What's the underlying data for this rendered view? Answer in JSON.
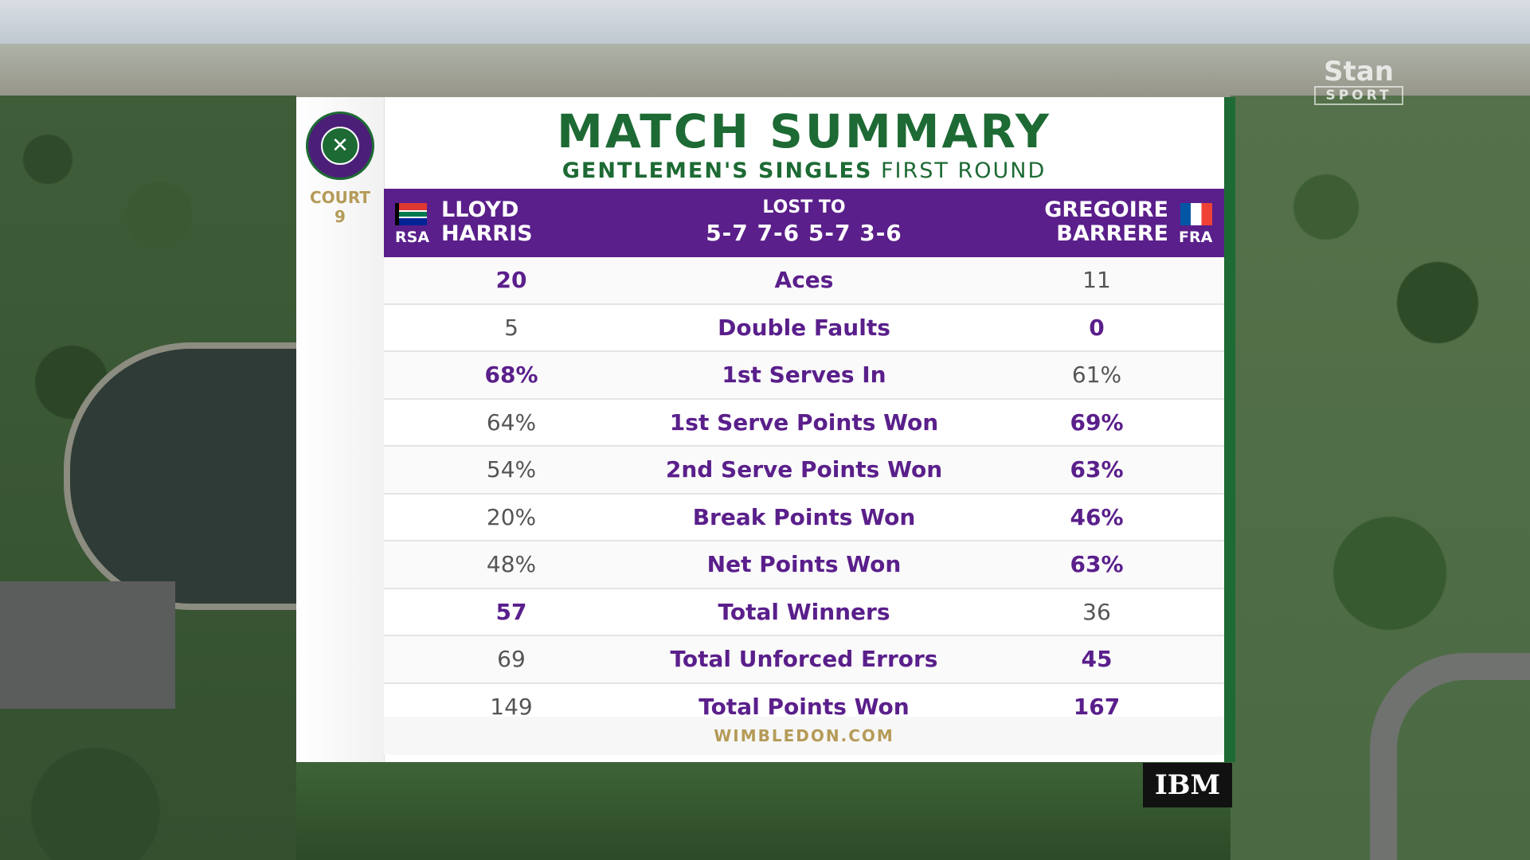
{
  "broadcaster": {
    "name": "Stan",
    "sub": "SPORT"
  },
  "panel": {
    "title": "MATCH SUMMARY",
    "subtitle_strong": "GENTLEMEN'S SINGLES",
    "subtitle_rest": "FIRST ROUND",
    "court_label": "COURT",
    "court_number": "9",
    "website": "WIMBLEDON.COM"
  },
  "header": {
    "left": {
      "first": "LLOYD",
      "last": "HARRIS",
      "code": "RSA"
    },
    "right": {
      "first": "GREGOIRE",
      "last": "BARRERE",
      "code": "FRA"
    },
    "result": "LOST TO",
    "score": "5-7 7-6 5-7 3-6"
  },
  "stats": [
    {
      "label": "Aces",
      "left": "20",
      "right": "11",
      "leader": "left"
    },
    {
      "label": "Double Faults",
      "left": "5",
      "right": "0",
      "leader": "right"
    },
    {
      "label": "1st Serves In",
      "left": "68%",
      "right": "61%",
      "leader": "left"
    },
    {
      "label": "1st Serve Points Won",
      "left": "64%",
      "right": "69%",
      "leader": "right"
    },
    {
      "label": "2nd Serve Points Won",
      "left": "54%",
      "right": "63%",
      "leader": "right"
    },
    {
      "label": "Break Points Won",
      "left": "20%",
      "right": "46%",
      "leader": "right"
    },
    {
      "label": "Net Points Won",
      "left": "48%",
      "right": "63%",
      "leader": "right"
    },
    {
      "label": "Total Winners",
      "left": "57",
      "right": "36",
      "leader": "left"
    },
    {
      "label": "Total Unforced Errors",
      "left": "69",
      "right": "45",
      "leader": "right"
    },
    {
      "label": "Total Points Won",
      "left": "149",
      "right": "167",
      "leader": "right"
    }
  ],
  "sponsor": "IBM",
  "colors": {
    "purple": "#5a1f8b",
    "green": "#1d6a34",
    "gold": "#b59b58"
  }
}
